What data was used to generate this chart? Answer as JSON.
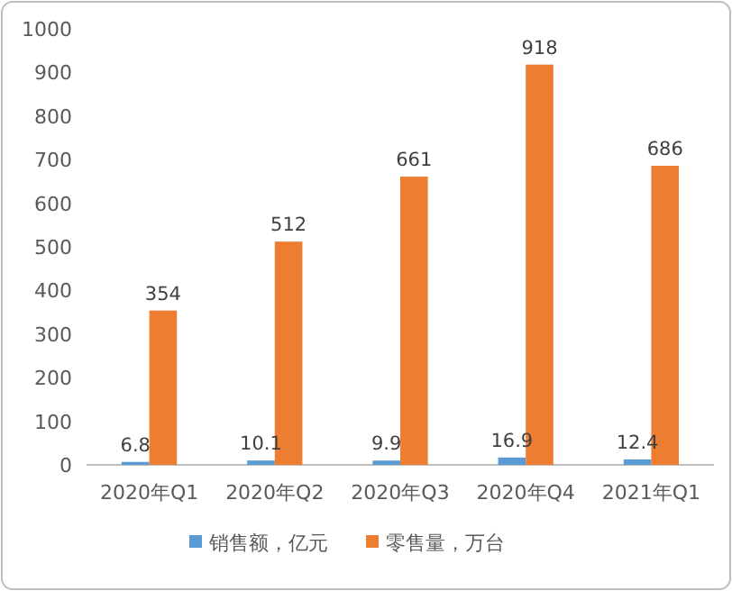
{
  "chart_data": {
    "type": "bar",
    "categories": [
      "2020年Q1",
      "2020年Q2",
      "2020年Q3",
      "2020年Q4",
      "2021年Q1"
    ],
    "series": [
      {
        "name": "销售额，亿元",
        "color": "#5b9bd5",
        "values": [
          6.8,
          10.1,
          9.9,
          16.9,
          12.4
        ]
      },
      {
        "name": "零售量，万台",
        "color": "#ed7d31",
        "values": [
          354,
          512,
          661,
          918,
          686
        ]
      }
    ],
    "ylim": [
      0,
      1000
    ],
    "yticks": [
      0,
      100,
      200,
      300,
      400,
      500,
      600,
      700,
      800,
      900,
      1000
    ],
    "grid": false,
    "legend": "bottom",
    "data_labels": true
  }
}
